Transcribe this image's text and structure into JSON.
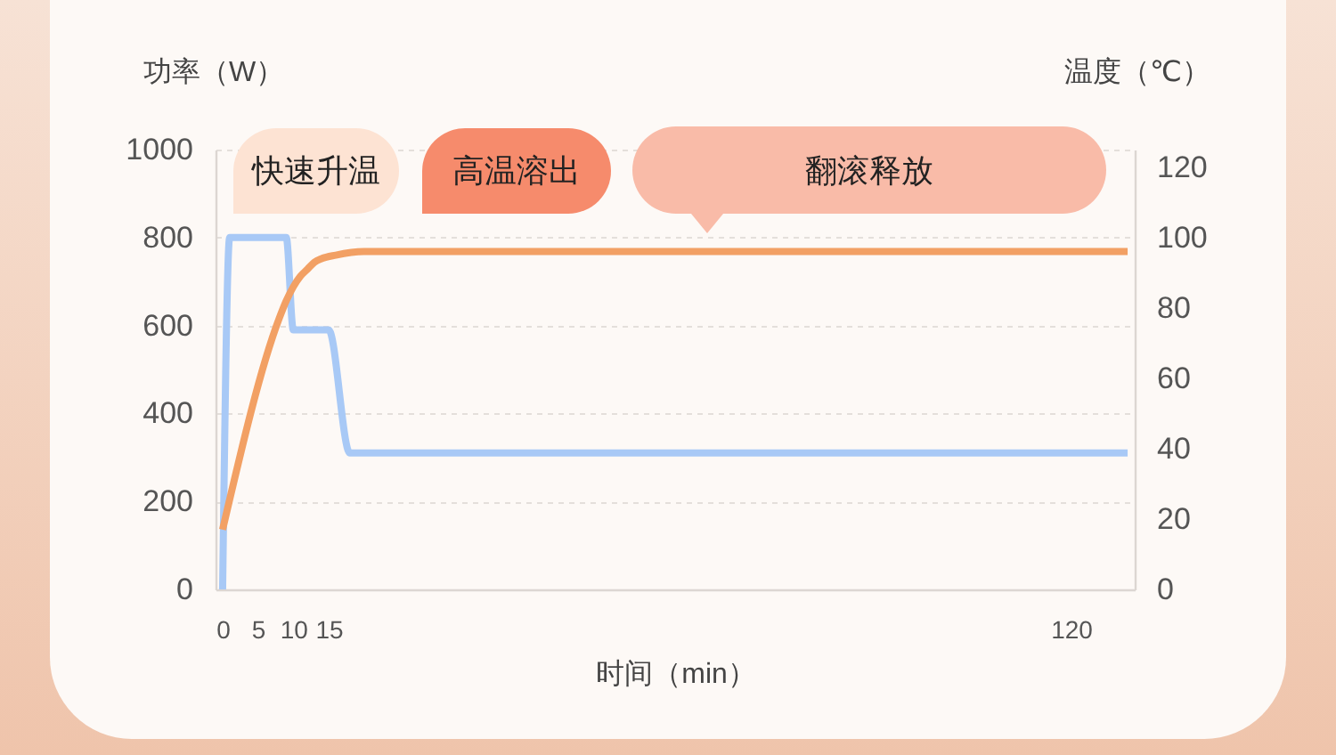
{
  "chart_data": {
    "type": "line",
    "xlabel": "时间（min）",
    "ylabel": "功率（W）",
    "y2label": "温度（℃）",
    "xlim": [
      -1,
      129
    ],
    "xticks": [
      0,
      5,
      10,
      15,
      120
    ],
    "ylim": [
      0,
      1000
    ],
    "yticks": [
      0,
      200,
      400,
      600,
      800,
      1000
    ],
    "y2lim": [
      0,
      125
    ],
    "y2ticks": [
      0,
      20,
      40,
      60,
      80,
      100,
      120
    ],
    "series": [
      {
        "color": "#a8c9f6",
        "x": [
          0,
          1,
          9,
          10,
          15,
          18,
          128
        ],
        "values": [
          0,
          800,
          800,
          590,
          590,
          310,
          310
        ]
      },
      {
        "color": "#f2a064",
        "axis": "y2",
        "x": [
          0,
          8,
          9,
          10,
          11,
          12,
          13,
          14,
          16,
          20,
          128
        ],
        "values": [
          17,
          77,
          82,
          86,
          89,
          91,
          93,
          94,
          95,
          96,
          96
        ]
      }
    ],
    "annotations": [
      "快速升温",
      "高温溶出",
      "翻滚释放"
    ],
    "grid": "y",
    "line_style": "solid"
  }
}
